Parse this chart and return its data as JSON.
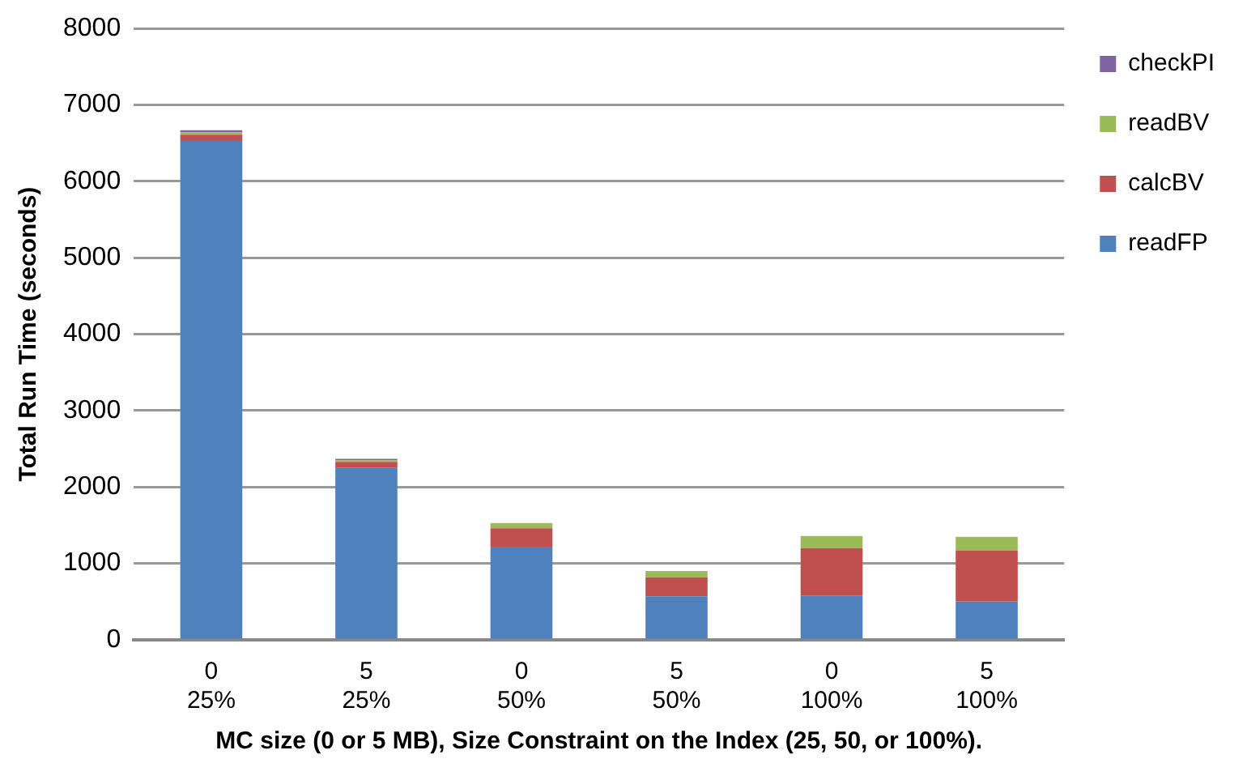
{
  "chart_data": {
    "type": "bar",
    "stacked": true,
    "xlabel": "MC size (0 or 5 MB), Size Constraint on the Index (25, 50, or 100%).",
    "ylabel": "Total Run Time (seconds)",
    "categories": [
      "0\n25%",
      "5\n25%",
      "0\n50%",
      "5\n50%",
      "0\n100%",
      "5\n100%"
    ],
    "series": [
      {
        "name": "readFP",
        "color": "#4f81bd",
        "values": [
          6530,
          2250,
          1220,
          570,
          580,
          500
        ]
      },
      {
        "name": "calcBV",
        "color": "#c0504d",
        "values": [
          80,
          80,
          240,
          250,
          620,
          670
        ]
      },
      {
        "name": "readBV",
        "color": "#9bbb59",
        "values": [
          30,
          20,
          70,
          80,
          160,
          180
        ]
      },
      {
        "name": "checkPI",
        "color": "#8064a2",
        "values": [
          30,
          20,
          0,
          0,
          0,
          0
        ]
      }
    ],
    "ylim": [
      0,
      8000
    ],
    "yticks": [
      0,
      1000,
      2000,
      3000,
      4000,
      5000,
      6000,
      7000,
      8000
    ],
    "grid": "y",
    "legend": "top right"
  }
}
